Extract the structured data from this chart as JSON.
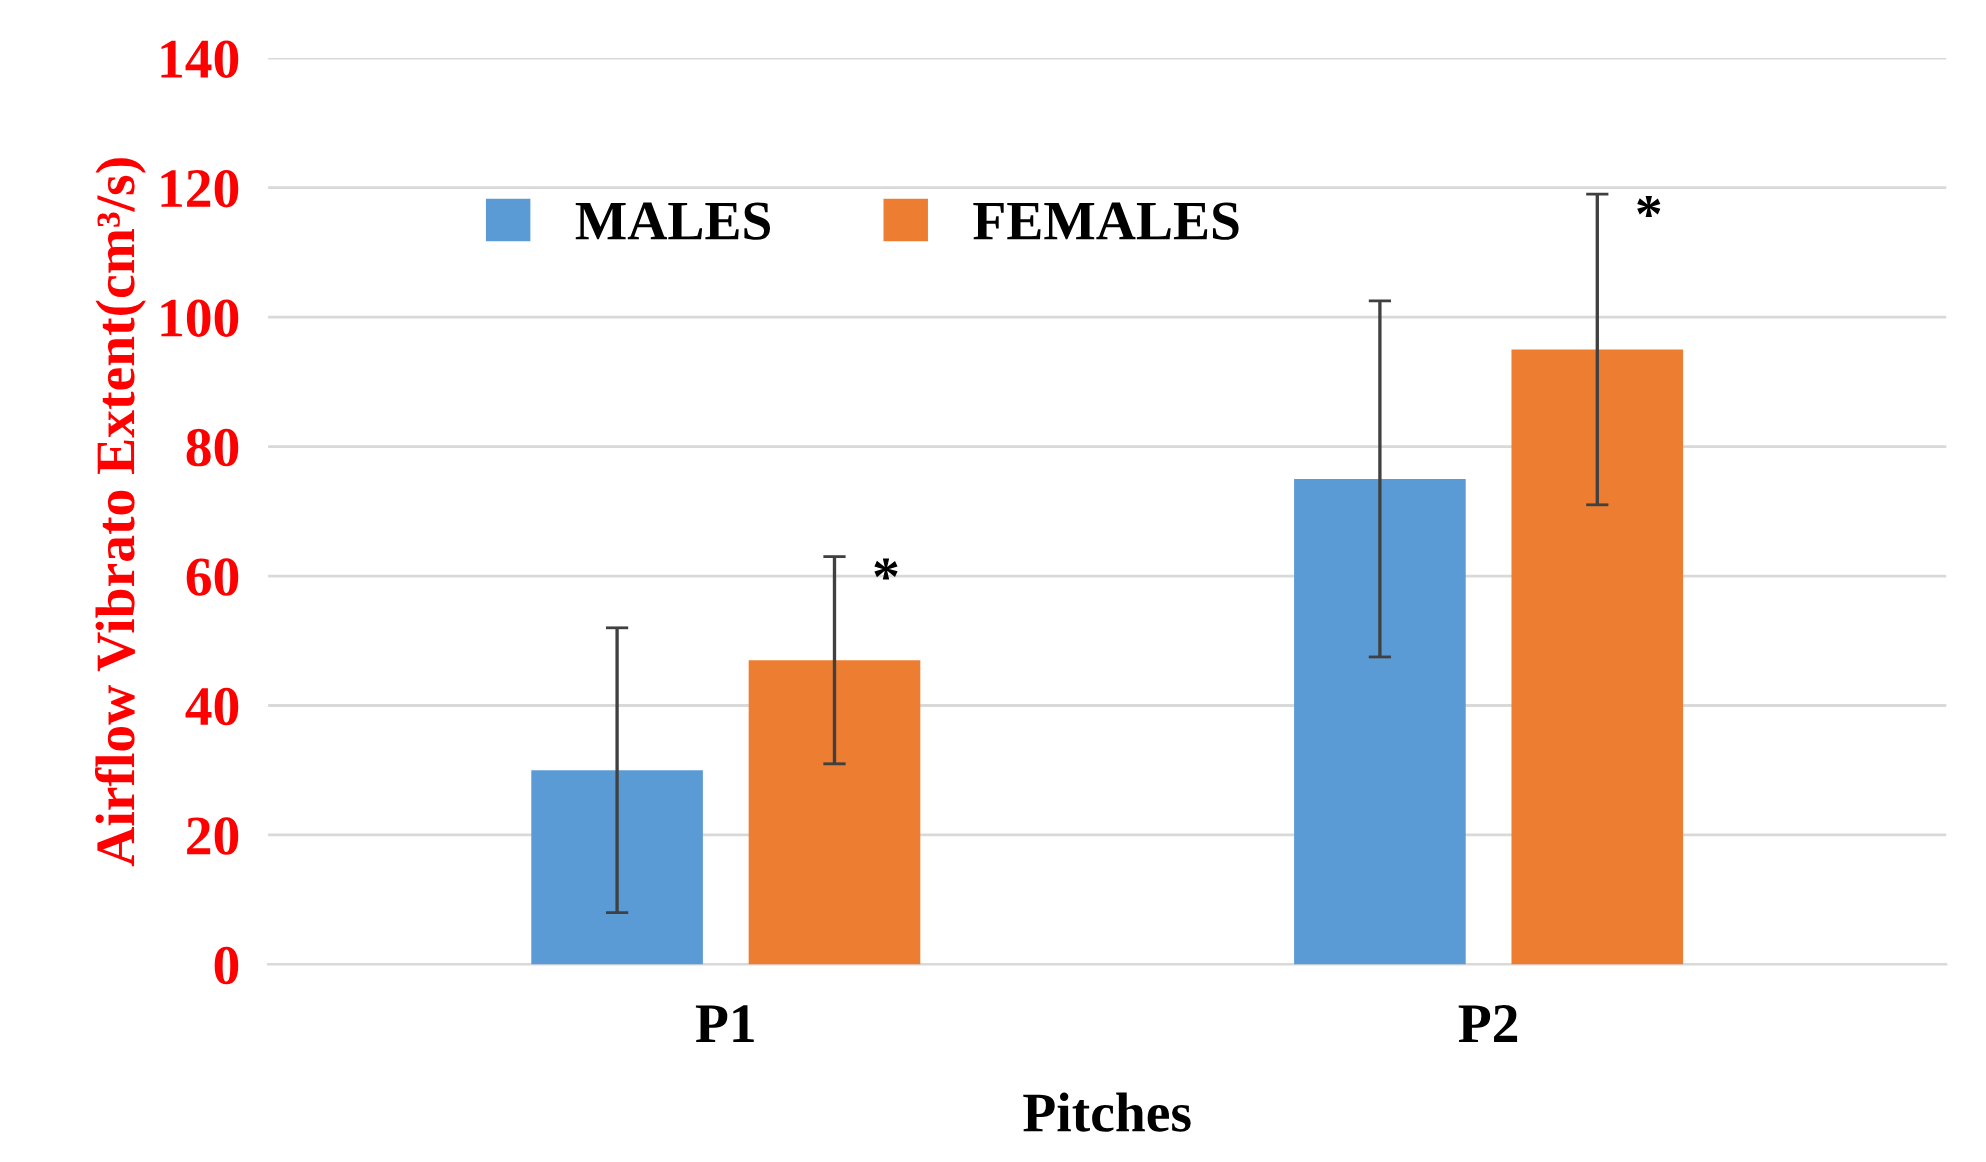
{
  "chart_data": {
    "type": "bar",
    "xlabel": "Pitches",
    "ylabel": "Airflow Vibrato Extent(cm³/s)",
    "categories": [
      "P1",
      "P2"
    ],
    "series": [
      {
        "name": "MALES",
        "color": "#5b9bd5",
        "values": [
          30,
          75
        ],
        "errors": [
          22,
          27.5
        ]
      },
      {
        "name": "FEMALES",
        "color": "#ed7d31",
        "values": [
          47,
          95
        ],
        "errors": [
          16,
          24
        ]
      }
    ],
    "ylim": [
      0,
      140
    ],
    "yticks": [
      0,
      20,
      40,
      60,
      80,
      100,
      120,
      140
    ],
    "grid": "y",
    "legend": "top left",
    "annotations": [
      "*",
      "*"
    ]
  }
}
